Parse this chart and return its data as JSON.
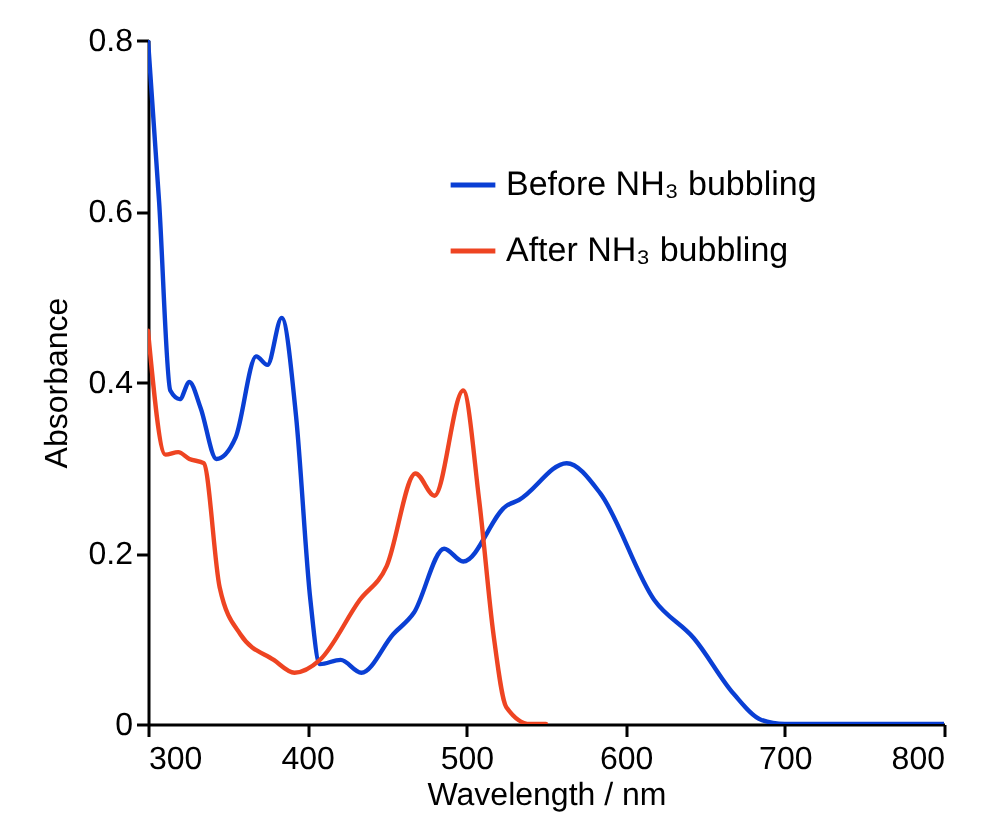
{
  "chart_data": {
    "type": "line",
    "xlabel": "Wavelength / nm",
    "ylabel": "Absorbance",
    "xlim": [
      300,
      800
    ],
    "xticks": [
      300,
      400,
      500,
      600,
      700,
      800
    ],
    "ylim": [
      0,
      0.8
    ],
    "yticks": [
      0,
      0.2,
      0.4,
      0.6,
      0.8
    ],
    "grid": false,
    "legend": "top right",
    "marker": "none",
    "line_style": "solid",
    "series": [
      {
        "name": "Before NH₃ bubbling",
        "color": "#0a3fd4",
        "x": [
          300,
          307,
          314,
          320,
          326,
          333,
          343,
          355,
          368,
          375,
          384,
          393,
          402,
          408,
          421,
          434,
          454,
          467,
          486,
          498,
          525,
          533,
          563,
          584,
          618,
          643,
          668,
          685,
          700,
          800
        ],
        "values": [
          0.8,
          0.61,
          0.39,
          0.38,
          0.4,
          0.37,
          0.31,
          0.335,
          0.43,
          0.42,
          0.475,
          0.36,
          0.145,
          0.07,
          0.075,
          0.06,
          0.105,
          0.13,
          0.205,
          0.19,
          0.255,
          0.262,
          0.305,
          0.27,
          0.145,
          0.1,
          0.035,
          0.005,
          0,
          0
        ]
      },
      {
        "name": "After NH₃ bubbling",
        "color": "#ee4422",
        "x": [
          300,
          311,
          319,
          326,
          335,
          345,
          358,
          379,
          392,
          408,
          433,
          450,
          468,
          480,
          498,
          508,
          517,
          525,
          540,
          550
        ],
        "values": [
          0.46,
          0.315,
          0.318,
          0.31,
          0.305,
          0.16,
          0.105,
          0.075,
          0.06,
          0.075,
          0.145,
          0.185,
          0.293,
          0.267,
          0.39,
          0.262,
          0.105,
          0.02,
          0,
          0
        ]
      }
    ]
  }
}
